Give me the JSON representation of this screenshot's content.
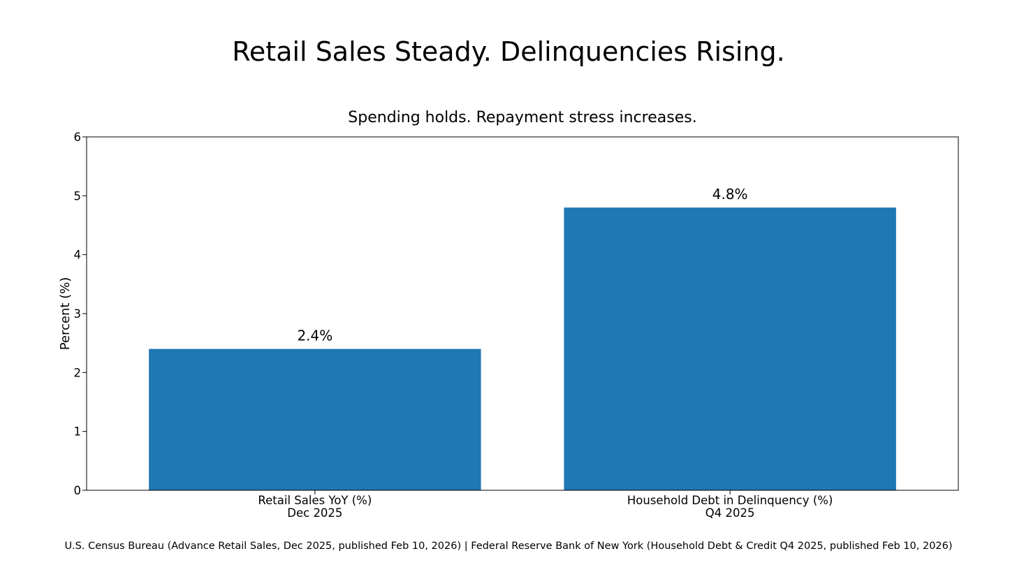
{
  "chart_data": {
    "type": "bar",
    "suptitle": "Retail Sales Steady. Delinquencies Rising.",
    "title": "Spending holds. Repayment stress increases.",
    "xlabel": "",
    "ylabel": "Percent (%)",
    "ylim": [
      0,
      6
    ],
    "yticks": [
      0,
      1,
      2,
      3,
      4,
      5,
      6
    ],
    "grid": false,
    "categories": [
      {
        "line1": "Retail Sales YoY (%)",
        "line2": "Dec 2025"
      },
      {
        "line1": "Household Debt in Delinquency (%)",
        "line2": "Q4 2025"
      }
    ],
    "values": [
      2.4,
      4.8
    ],
    "data_labels": [
      "2.4%",
      "4.8%"
    ],
    "bar_color": "#1f77b4"
  },
  "source": "U.S. Census Bureau (Advance Retail Sales, Dec 2025, published Feb 10, 2026) | Federal Reserve Bank of New York (Household Debt & Credit Q4 2025, published Feb 10, 2026)"
}
